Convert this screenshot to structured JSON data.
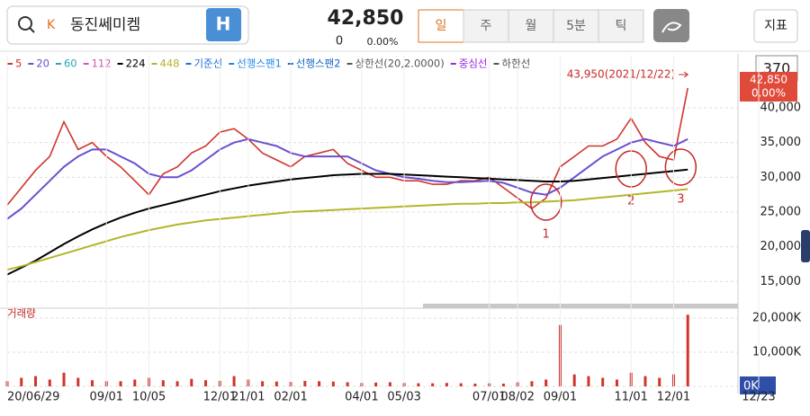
{
  "header": {
    "search_prefix": "K",
    "stock_name": "동진쎄미켐",
    "badge": "H",
    "price": "42,850",
    "change": "0",
    "change_pct": "0.00%",
    "periods": [
      "일",
      "주",
      "월",
      "5분",
      "틱"
    ],
    "indicator_button": "지표",
    "side_badge": "370"
  },
  "chart_data": [
    {
      "type": "line",
      "series": [
        {
          "name": "5",
          "color": "#d0342c",
          "values": [
            26000,
            28500,
            31000,
            33000,
            38000,
            34000,
            35000,
            33000,
            31500,
            29500,
            27500,
            30500,
            31500,
            33500,
            34500,
            36500,
            37000,
            35500,
            33500,
            32500,
            31500,
            33000,
            33500,
            34000,
            32000,
            31000,
            30000,
            30000,
            29500,
            29500,
            29000,
            29000,
            29500,
            29500,
            30000,
            28500,
            27000,
            25500,
            27000,
            31500,
            33000,
            34500,
            34500,
            35500,
            38500,
            35000,
            33000,
            32500,
            42850,
            null,
            null,
            null,
            null,
            null
          ]
        },
        {
          "name": "20",
          "color": "#6a4fd0",
          "values": [
            24000,
            25500,
            27500,
            29500,
            31500,
            33000,
            34000,
            34000,
            33000,
            32000,
            30500,
            30000,
            30000,
            31000,
            32500,
            34000,
            35000,
            35500,
            35000,
            34500,
            33500,
            33000,
            33000,
            33000,
            33000,
            32000,
            31000,
            30500,
            30000,
            29800,
            29500,
            29300,
            29300,
            29400,
            29500,
            29200,
            28500,
            27800,
            27500,
            28500,
            30000,
            31500,
            33000,
            34000,
            35000,
            35500,
            35000,
            34500,
            35500,
            null,
            null,
            null,
            null,
            null
          ]
        },
        {
          "name": "60",
          "color": "#26a8b5"
        },
        {
          "name": "112",
          "color": "#d455b5"
        },
        {
          "name": "224",
          "color": "#000000",
          "values": [
            16000,
            17000,
            18000,
            19200,
            20400,
            21500,
            22500,
            23400,
            24200,
            24900,
            25500,
            26000,
            26500,
            27000,
            27500,
            28000,
            28400,
            28800,
            29100,
            29400,
            29700,
            29900,
            30100,
            30300,
            30400,
            30500,
            30500,
            30500,
            30400,
            30300,
            30200,
            30100,
            30000,
            29900,
            29800,
            29700,
            29600,
            29500,
            29400,
            29400,
            29500,
            29700,
            29900,
            30100,
            30300,
            30500,
            30700,
            30900,
            31100,
            null,
            null,
            null,
            null,
            null
          ]
        },
        {
          "name": "448",
          "color": "#b5b52a",
          "values": [
            16700,
            17200,
            17800,
            18400,
            19000,
            19600,
            20200,
            20800,
            21400,
            21900,
            22400,
            22800,
            23200,
            23500,
            23800,
            24000,
            24200,
            24400,
            24600,
            24800,
            25000,
            25100,
            25200,
            25300,
            25400,
            25500,
            25600,
            25700,
            25800,
            25900,
            26000,
            26100,
            26200,
            26200,
            26300,
            26300,
            26400,
            26400,
            26500,
            26600,
            26700,
            26900,
            27100,
            27300,
            27500,
            27700,
            27900,
            28100,
            28300,
            null,
            null,
            null,
            null,
            null
          ]
        },
        {
          "name": "기준선",
          "color": "#1e6fd9"
        },
        {
          "name": "선행스팬1",
          "color": "#1e88e5"
        },
        {
          "name": "선행스팬2",
          "color": "#1565c0"
        },
        {
          "name": "상한선(20,2.0000)",
          "color": "#555555"
        },
        {
          "name": "중심선",
          "color": "#9c27d9"
        },
        {
          "name": "하한선",
          "color": "#555555"
        }
      ],
      "ylim": [
        12200,
        47500
      ],
      "yticks": [
        {
          "value": 15000,
          "label": "15,000"
        },
        {
          "value": 20000,
          "label": "20,000"
        },
        {
          "value": 25000,
          "label": "25,000"
        },
        {
          "value": 30000,
          "label": "30,000"
        },
        {
          "value": 35000,
          "label": "35,000"
        },
        {
          "value": 40000,
          "label": "40,000"
        }
      ],
      "grid": true,
      "high_annotation": "43,950(2021/12/22)",
      "last_tag": {
        "price": "42,850",
        "pct": "0.00%"
      },
      "circle_labels": [
        "1",
        "2",
        "3"
      ]
    },
    {
      "type": "bar",
      "title": "거래량",
      "categories": [
        "20/06/29",
        null,
        null,
        null,
        null,
        null,
        null,
        "09/01",
        null,
        null,
        "10/05",
        null,
        null,
        null,
        null,
        "12/01",
        null,
        "21/01",
        null,
        null,
        "02/01",
        null,
        null,
        null,
        null,
        "04/01",
        null,
        null,
        "05/03",
        null,
        null,
        null,
        null,
        null,
        "07/01",
        null,
        "08/02",
        null,
        null,
        "09/01",
        null,
        null,
        null,
        null,
        "11/01",
        null,
        null,
        "12/01",
        null,
        null,
        null,
        null,
        null,
        "12/23"
      ],
      "values": [
        1500,
        2500,
        3000,
        2000,
        4000,
        2500,
        1800,
        1500,
        1500,
        2000,
        2500,
        1800,
        1500,
        2200,
        1800,
        1600,
        3000,
        2000,
        1500,
        1400,
        1300,
        1600,
        1500,
        1400,
        1200,
        1000,
        1100,
        1200,
        1000,
        900,
        900,
        1000,
        900,
        800,
        900,
        800,
        1200,
        1500,
        2000,
        18000,
        3500,
        3000,
        2500,
        2000,
        4000,
        3000,
        2500,
        3500,
        21000,
        null,
        null,
        null,
        null,
        null
      ],
      "color": "#d0342c",
      "ylim": [
        0,
        22400
      ],
      "yticks": [
        {
          "value": 0,
          "label": "0K"
        },
        {
          "value": 10000,
          "label": "10,000K"
        },
        {
          "value": 20000,
          "label": "20,000K"
        }
      ],
      "grid": true
    }
  ]
}
